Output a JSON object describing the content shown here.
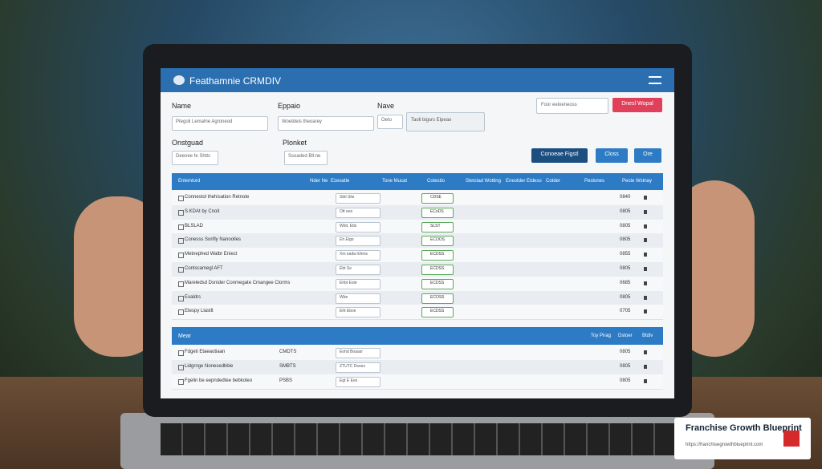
{
  "app": {
    "title": "Feathamnie CRMDIV"
  },
  "form": {
    "name": {
      "label": "Name",
      "value": "Ptegoli Lemahie Agroneod"
    },
    "eppaio": {
      "label": "Eppaio",
      "value": "Woetdeis theoarey"
    },
    "nave": {
      "label": "Nave",
      "value": "Oeto",
      "note": "Taoli bigsrs Elpeao"
    },
    "onstguad": {
      "label": "Onstguad",
      "value": "Deenee fe Shtts"
    },
    "plonket": {
      "label": "Plonket",
      "value": "Ssoaded Bll:ne"
    },
    "search": "Foor eeloeneoss",
    "primary_button": "Dnesl Wopal",
    "buttons": [
      "Conoeae Figstl",
      "Closs",
      "Ore"
    ]
  },
  "table": {
    "columns": [
      "Enlemtord",
      "Nder Ne",
      "Ezeoatle",
      "Tone Mucat",
      "Cotestio",
      "Stetstad Wotting",
      "Eneotder Etdeso",
      "Cotder",
      "Pestones",
      "Pecte Wstnay"
    ],
    "rows": [
      [
        "Connestol thehisation Retnote",
        "Sbtl Slts",
        "CDSE",
        "0840"
      ],
      [
        "S.KDAt by Cnoit",
        "Ott ees",
        "ECoDS",
        "0805"
      ],
      [
        "BLSLAD",
        "Wbit. Etts",
        "SLST",
        "0805"
      ],
      [
        "Conesss Sorifly Nanoolles",
        "Eh Elgo",
        "ECOOS",
        "0805"
      ],
      [
        "Metnephed Walbr Eniect",
        "Xm eadw Ehms",
        "ECDSS",
        "0855"
      ],
      [
        "Contscamegl AFT",
        "Ebt Se",
        "ECDSS",
        "0805"
      ],
      [
        "Mareledsd Dsnider Conmegate Cmangee Clorms",
        "Ehbt Este",
        "ECDSS",
        "0685"
      ],
      [
        "Exaldrs",
        "Wbe",
        "ECOSS",
        "0805"
      ],
      [
        "Etespy Llastlt",
        "Eht Eboe",
        "ECDSS",
        "0705"
      ]
    ]
  },
  "section2": {
    "title": "Mear",
    "columns": [
      "Toy Pirag",
      "Dstoer",
      "Btdiv"
    ],
    "rows": [
      [
        "Fdgeti Etaeaotiaan",
        "CMDTS",
        "Eohd Boaasr",
        "0805"
      ],
      [
        "Lidgrnge Nonesedbbie",
        "SMBTS",
        "ZTUTC Dsoes",
        "0805"
      ],
      [
        "Fgelin be eepndedtee bebkoleo",
        "PSBS",
        "Egt E Ees",
        "0805"
      ]
    ]
  },
  "badge": {
    "title": "Franchise Growth Blueprint",
    "url": "https://franchisegrowthblueprint.com"
  }
}
